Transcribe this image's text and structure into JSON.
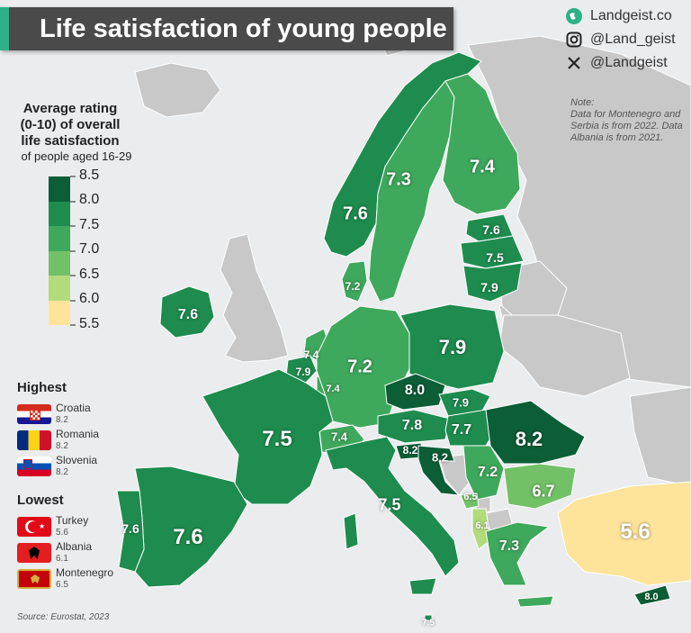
{
  "header": {
    "title": "Life satisfaction of young people"
  },
  "social": [
    {
      "icon": "globe-icon",
      "text": "Landgeist.co"
    },
    {
      "icon": "instagram-icon",
      "text": "@Land_geist"
    },
    {
      "icon": "x-icon",
      "text": "@Landgeist"
    }
  ],
  "note": {
    "heading": "Note:",
    "lines": [
      "Data for Montenegro and",
      "Serbia is from 2022. Data",
      "Albania is from 2021."
    ]
  },
  "legend": {
    "title_lines": [
      "Average rating",
      "(0-10) of overall",
      "life satisfaction"
    ],
    "subtitle": "of people aged 16-29",
    "scale": [
      {
        "label": "8.5",
        "color": "#0c5e36"
      },
      {
        "label": "8.0",
        "color": "#1e8c4e"
      },
      {
        "label": "7.5",
        "color": "#3ea85c"
      },
      {
        "label": "7.0",
        "color": "#72c167"
      },
      {
        "label": "6.5",
        "color": "#b2db7c"
      },
      {
        "label": "6.0",
        "color": "#e6ef9e"
      },
      {
        "label": "5.5",
        "color": "#fde49a"
      }
    ]
  },
  "highest": {
    "title": "Highest",
    "items": [
      {
        "country": "Croatia",
        "value": "8.2",
        "flag": "croatia"
      },
      {
        "country": "Romania",
        "value": "8.2",
        "flag": "romania"
      },
      {
        "country": "Slovenia",
        "value": "8.2",
        "flag": "slovenia"
      }
    ]
  },
  "lowest": {
    "title": "Lowest",
    "items": [
      {
        "country": "Turkey",
        "value": "5.6",
        "flag": "turkey"
      },
      {
        "country": "Albania",
        "value": "6.1",
        "flag": "albania"
      },
      {
        "country": "Montenegro",
        "value": "6.5",
        "flag": "montenegro"
      }
    ]
  },
  "source": "Source: Eurostat, 2023",
  "map_data": {
    "no_data_color": "#c8c8c8",
    "sea_color": "#eaeced",
    "regions": [
      {
        "id": "norway",
        "value": 7.6,
        "label": "7.6"
      },
      {
        "id": "sweden",
        "value": 7.3,
        "label": "7.3"
      },
      {
        "id": "finland",
        "value": 7.4,
        "label": "7.4"
      },
      {
        "id": "estonia",
        "value": 7.6,
        "label": "7.6"
      },
      {
        "id": "latvia",
        "value": 7.5,
        "label": "7.5"
      },
      {
        "id": "lithuania",
        "value": 7.9,
        "label": "7.9"
      },
      {
        "id": "denmark",
        "value": 7.2,
        "label": "7.2"
      },
      {
        "id": "ireland",
        "value": 7.6,
        "label": "7.6"
      },
      {
        "id": "netherlands",
        "value": 7.4,
        "label": "7.4"
      },
      {
        "id": "belgium",
        "value": 7.9,
        "label": "7.9"
      },
      {
        "id": "luxembourg",
        "value": 7.4,
        "label": "7.4"
      },
      {
        "id": "germany",
        "value": 7.2,
        "label": "7.2"
      },
      {
        "id": "poland",
        "value": 7.9,
        "label": "7.9"
      },
      {
        "id": "czechia",
        "value": 8.0,
        "label": "8.0"
      },
      {
        "id": "slovakia",
        "value": 7.9,
        "label": "7.9"
      },
      {
        "id": "austria",
        "value": 7.8,
        "label": "7.8"
      },
      {
        "id": "hungary",
        "value": 7.7,
        "label": "7.7"
      },
      {
        "id": "switzerland",
        "value": 7.4,
        "label": "7.4"
      },
      {
        "id": "france",
        "value": 7.5,
        "label": "7.5"
      },
      {
        "id": "spain",
        "value": 7.6,
        "label": "7.6"
      },
      {
        "id": "portugal",
        "value": 7.6,
        "label": "7.6"
      },
      {
        "id": "italy",
        "value": 7.5,
        "label": "7.5"
      },
      {
        "id": "slovenia",
        "value": 8.2,
        "label": "8.2"
      },
      {
        "id": "croatia",
        "value": 8.2,
        "label": "8.2"
      },
      {
        "id": "serbia",
        "value": 7.2,
        "label": "7.2"
      },
      {
        "id": "romania",
        "value": 8.2,
        "label": "8.2"
      },
      {
        "id": "bulgaria",
        "value": 6.7,
        "label": "6.7"
      },
      {
        "id": "montenegro",
        "value": 6.5,
        "label": "6.5"
      },
      {
        "id": "albania",
        "value": 6.1,
        "label": "6.1"
      },
      {
        "id": "greece",
        "value": 7.3,
        "label": "7.3"
      },
      {
        "id": "turkey",
        "value": 5.6,
        "label": "5.6"
      },
      {
        "id": "cyprus",
        "value": 8.0,
        "label": "8.0"
      },
      {
        "id": "malta",
        "value": 7.5,
        "label": "7.5"
      }
    ]
  }
}
